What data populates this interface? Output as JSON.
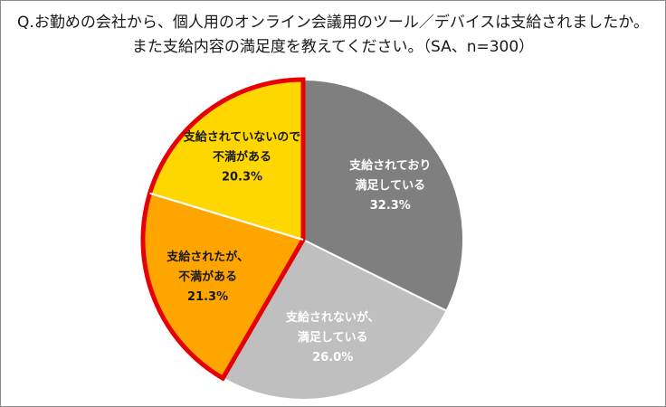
{
  "title_line1": "Q.お勤めの会社から、個人用のオンライン会議用のツール／デバイスは支給されましたか。",
  "title_line2": "また支給内容の満足度を教えてください。（SA、n=300）",
  "chart_data": {
    "type": "pie",
    "start_angle_deg": 0,
    "direction": "clockwise",
    "slices": [
      {
        "label_lines": [
          "支給されており",
          "満足している"
        ],
        "value": 32.3,
        "value_text": "32.3%",
        "color": "#7f7f7f",
        "text_color": "#ffffff",
        "highlighted": false
      },
      {
        "label_lines": [
          "支給されないが、",
          "満足している"
        ],
        "value": 26.0,
        "value_text": "26.0%",
        "color": "#bfbfbf",
        "text_color": "#ffffff",
        "highlighted": false
      },
      {
        "label_lines": [
          "支給されたが、",
          "不満がある"
        ],
        "value": 21.3,
        "value_text": "21.3%",
        "color": "#ffa500",
        "text_color": "#1a1a1a",
        "highlighted": true
      },
      {
        "label_lines": [
          "支給されていないので",
          "不満がある"
        ],
        "value": 20.3,
        "value_text": "20.3%",
        "color": "#ffd700",
        "text_color": "#1a1a1a",
        "highlighted": true
      }
    ],
    "highlight_outline_color": "#e60000"
  }
}
